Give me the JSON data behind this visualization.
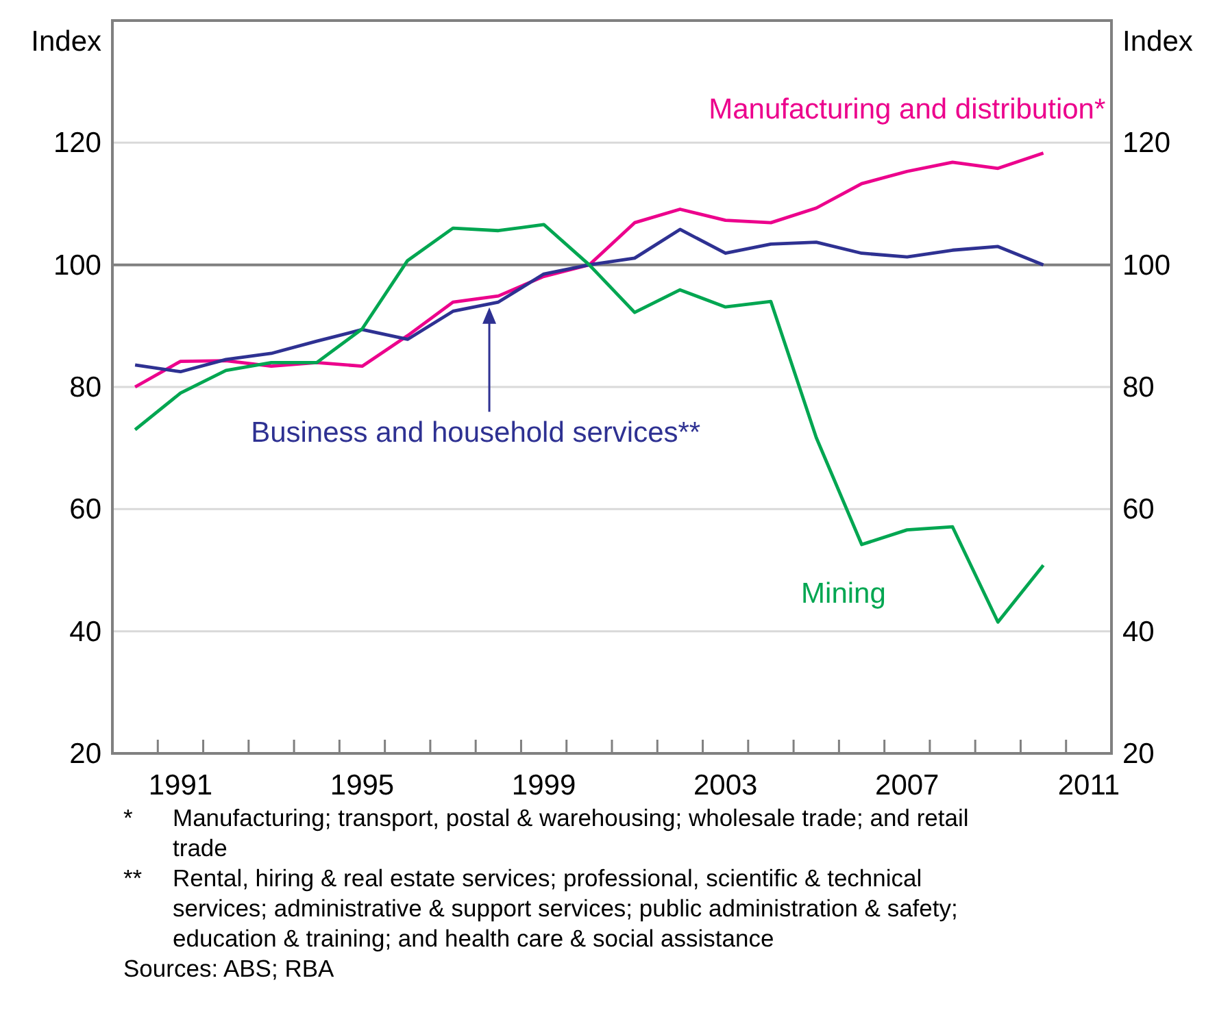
{
  "chart_data": {
    "type": "line",
    "ylabel": "Index",
    "y2label": "Index",
    "x": [
      1990.5,
      1991.5,
      1992.5,
      1993.5,
      1994.5,
      1995.5,
      1996.5,
      1997.5,
      1998.5,
      1999.5,
      2000.5,
      2001.5,
      2002.5,
      2003.5,
      2004.5,
      2005.5,
      2006.5,
      2007.5,
      2008.5,
      2009.5,
      2010.5
    ],
    "xlim": [
      1990,
      2012
    ],
    "xticks": [
      {
        "value": 1991,
        "label": null
      },
      {
        "value": 1991.5,
        "label": "1991"
      },
      {
        "value": 1992,
        "label": null
      },
      {
        "value": 1993,
        "label": null
      },
      {
        "value": 1994,
        "label": null
      },
      {
        "value": 1995,
        "label": null
      },
      {
        "value": 1995.5,
        "label": "1995"
      },
      {
        "value": 1996,
        "label": null
      },
      {
        "value": 1997,
        "label": null
      },
      {
        "value": 1998,
        "label": null
      },
      {
        "value": 1999,
        "label": null
      },
      {
        "value": 1999.5,
        "label": "1999"
      },
      {
        "value": 2000,
        "label": null
      },
      {
        "value": 2001,
        "label": null
      },
      {
        "value": 2002,
        "label": null
      },
      {
        "value": 2003,
        "label": null
      },
      {
        "value": 2003.5,
        "label": "2003"
      },
      {
        "value": 2004,
        "label": null
      },
      {
        "value": 2005,
        "label": null
      },
      {
        "value": 2006,
        "label": null
      },
      {
        "value": 2007,
        "label": null
      },
      {
        "value": 2007.5,
        "label": "2007"
      },
      {
        "value": 2008,
        "label": null
      },
      {
        "value": 2009,
        "label": null
      },
      {
        "value": 2010,
        "label": null
      },
      {
        "value": 2011,
        "label": null
      },
      {
        "value": 2011.5,
        "label": "2011"
      }
    ],
    "ylim": [
      20,
      140
    ],
    "yticks": [
      20,
      40,
      60,
      80,
      100,
      120
    ],
    "y2lim": [
      20,
      140
    ],
    "y2ticks": [
      20,
      40,
      60,
      80,
      100,
      120
    ],
    "grid": "y",
    "marker": "none",
    "line_style": "solid",
    "ref_lines": [
      {
        "axis": "y",
        "value": 100,
        "color": "#808080"
      }
    ],
    "series": [
      {
        "name": "Manufacturing and distribution*",
        "color": "#ec008c",
        "values": [
          80,
          84.2,
          84.3,
          83.4,
          84,
          83.4,
          88.4,
          93.9,
          94.9,
          98.1,
          100,
          106.9,
          109.1,
          107.3,
          106.9,
          109.3,
          113.3,
          115.3,
          116.8,
          115.8,
          118.3
        ]
      },
      {
        "name": "Business and household services**",
        "color": "#2e3192",
        "values": [
          83.6,
          82.5,
          84.5,
          85.5,
          87.5,
          89.4,
          87.8,
          92.4,
          93.9,
          98.5,
          100,
          101.1,
          105.8,
          101.9,
          103.4,
          103.7,
          101.9,
          101.3,
          102.4,
          103,
          100
        ]
      },
      {
        "name": "Mining",
        "color": "#00a651",
        "values": [
          73,
          79,
          82.7,
          84,
          84,
          89.5,
          100.7,
          106,
          105.6,
          106.6,
          100,
          92.2,
          95.9,
          93.1,
          94,
          71.7,
          54.2,
          56.6,
          57.1,
          41.5,
          50.8
        ]
      }
    ],
    "annotations": [
      "* Manufacturing; transport, postal & warehousing; wholesale trade; and retail trade",
      "** Rental, hiring & real estate services; professional, scientific & technical services; administrative & support services; public administration & safety; education & training; and health care & social assistance",
      "Sources: ABS; RBA"
    ]
  }
}
